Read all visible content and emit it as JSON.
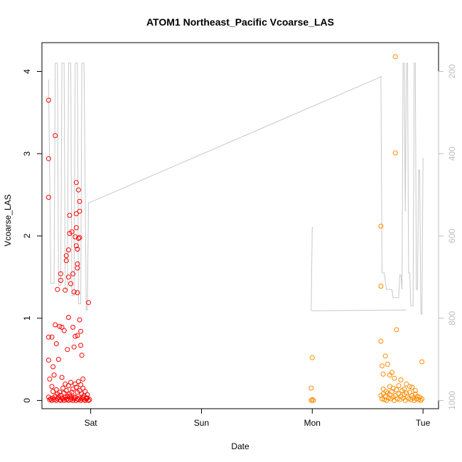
{
  "chart_data": {
    "type": "scatter",
    "title": "ATOM1 Northeast_Pacific Vcoarse_LAS",
    "xlabel": "Date",
    "ylabel": "Vcoarse_LAS",
    "x_ticks": [
      "Sat",
      "Sun",
      "Mon",
      "Tue"
    ],
    "x_tick_values": [
      1,
      2,
      3,
      4
    ],
    "xlim": [
      0.56,
      4.14
    ],
    "ylim": [
      -0.1,
      4.35
    ],
    "y_ticks": [
      "0",
      "1",
      "2",
      "3",
      "4"
    ],
    "y_tick_values": [
      0,
      1,
      2,
      3,
      4
    ],
    "right_axis": {
      "ticks": [
        "200",
        "400",
        "600",
        "800",
        "1000"
      ],
      "tick_values": [
        200,
        400,
        600,
        800,
        1000
      ],
      "reversed": true,
      "color": "#bdbdbd",
      "y_at_top": 200,
      "y_at_bottom": 1000
    },
    "colors": {
      "series_1": "#ff0000",
      "series_2": "#ff8c00",
      "line": "#c8c8c8"
    },
    "series": [
      {
        "color": "#ff0000",
        "points": [
          [
            0.62,
            3.65
          ],
          [
            0.62,
            2.94
          ],
          [
            0.62,
            2.47
          ],
          [
            0.62,
            0.77
          ],
          [
            0.62,
            0.49
          ],
          [
            0.63,
            0.26
          ],
          [
            0.65,
            0.77
          ],
          [
            0.66,
            0.41
          ],
          [
            0.67,
            0.31
          ],
          [
            0.68,
            0.92
          ],
          [
            0.68,
            3.22
          ],
          [
            0.69,
            0.69
          ],
          [
            0.7,
            1.35
          ],
          [
            0.71,
            0.5
          ],
          [
            0.72,
            0.9
          ],
          [
            0.73,
            1.54
          ],
          [
            0.73,
            1.46
          ],
          [
            0.74,
            0.89
          ],
          [
            0.74,
            0.28
          ],
          [
            0.76,
            0.85
          ],
          [
            0.77,
            1.34
          ],
          [
            0.78,
            1.76
          ],
          [
            0.78,
            1.7
          ],
          [
            0.79,
            0.62
          ],
          [
            0.8,
            1.5
          ],
          [
            0.8,
            1.01
          ],
          [
            0.8,
            1.83
          ],
          [
            0.81,
            2.25
          ],
          [
            0.81,
            2.03
          ],
          [
            0.82,
            1.42
          ],
          [
            0.83,
            2.05
          ],
          [
            0.84,
            1.54
          ],
          [
            0.84,
            0.89
          ],
          [
            0.85,
            1.32
          ],
          [
            0.85,
            0.65
          ],
          [
            0.86,
            0.78
          ],
          [
            0.86,
            1.99
          ],
          [
            0.87,
            2.1
          ],
          [
            0.87,
            2.27
          ],
          [
            0.87,
            2.65
          ],
          [
            0.87,
            1.88
          ],
          [
            0.88,
            1.84
          ],
          [
            0.88,
            1.66
          ],
          [
            0.88,
            1.61
          ],
          [
            0.88,
            1.31
          ],
          [
            0.88,
            0.79
          ],
          [
            0.89,
            1.97
          ],
          [
            0.89,
            2.56
          ],
          [
            0.9,
            2.3
          ],
          [
            0.9,
            2.42
          ],
          [
            0.9,
            1.98
          ],
          [
            0.9,
            0.98
          ],
          [
            0.91,
            0.84
          ],
          [
            0.91,
            0.67
          ],
          [
            0.92,
            0.55
          ],
          [
            0.93,
            0.26
          ],
          [
            0.98,
            1.19
          ],
          [
            0.65,
            0.17
          ],
          [
            0.66,
            0.11
          ],
          [
            0.69,
            0.13
          ],
          [
            0.7,
            0.08
          ],
          [
            0.72,
            0.1
          ],
          [
            0.73,
            0.06
          ],
          [
            0.75,
            0.15
          ],
          [
            0.76,
            0.09
          ],
          [
            0.77,
            0.2
          ],
          [
            0.78,
            0.12
          ],
          [
            0.79,
            0.05
          ],
          [
            0.8,
            0.18
          ],
          [
            0.81,
            0.08
          ],
          [
            0.82,
            0.22
          ],
          [
            0.83,
            0.1
          ],
          [
            0.84,
            0.14
          ],
          [
            0.85,
            0.04
          ],
          [
            0.86,
            0.2
          ],
          [
            0.87,
            0.16
          ],
          [
            0.88,
            0.1
          ],
          [
            0.89,
            0.23
          ],
          [
            0.9,
            0.12
          ],
          [
            0.91,
            0.19
          ],
          [
            0.92,
            0.08
          ],
          [
            0.93,
            0.15
          ],
          [
            0.94,
            0.06
          ],
          [
            0.95,
            0.11
          ],
          [
            0.96,
            0.03
          ],
          [
            0.97,
            0.07
          ],
          [
            0.62,
            0.04
          ],
          [
            0.63,
            0.01
          ],
          [
            0.64,
            0.02
          ],
          [
            0.65,
            0.0
          ],
          [
            0.66,
            0.03
          ],
          [
            0.67,
            0.01
          ],
          [
            0.68,
            0.05
          ],
          [
            0.69,
            0.0
          ],
          [
            0.7,
            0.02
          ],
          [
            0.71,
            0.04
          ],
          [
            0.72,
            0.01
          ],
          [
            0.73,
            0.0
          ],
          [
            0.74,
            0.03
          ],
          [
            0.75,
            0.02
          ],
          [
            0.76,
            0.0
          ],
          [
            0.77,
            0.04
          ],
          [
            0.78,
            0.01
          ],
          [
            0.79,
            0.02
          ],
          [
            0.8,
            0.0
          ],
          [
            0.81,
            0.05
          ],
          [
            0.82,
            0.01
          ],
          [
            0.83,
            0.03
          ],
          [
            0.84,
            0.0
          ],
          [
            0.85,
            0.02
          ],
          [
            0.86,
            0.04
          ],
          [
            0.87,
            0.0
          ],
          [
            0.88,
            0.02
          ],
          [
            0.89,
            0.01
          ],
          [
            0.9,
            0.03
          ],
          [
            0.91,
            0.0
          ],
          [
            0.92,
            0.02
          ],
          [
            0.93,
            0.04
          ],
          [
            0.94,
            0.01
          ],
          [
            0.95,
            0.0
          ],
          [
            0.96,
            0.02
          ],
          [
            0.97,
            0.03
          ],
          [
            0.98,
            0.0
          ],
          [
            0.99,
            0.01
          ]
        ]
      },
      {
        "color": "#ff8c00",
        "points": [
          [
            3.0,
            0.52
          ],
          [
            2.99,
            0.15
          ],
          [
            2.99,
            0.0
          ],
          [
            3.0,
            0.01
          ],
          [
            3.01,
            0.0
          ],
          [
            3.62,
            2.12
          ],
          [
            3.62,
            1.39
          ],
          [
            3.62,
            0.72
          ],
          [
            3.63,
            0.42
          ],
          [
            3.64,
            0.32
          ],
          [
            3.66,
            0.54
          ],
          [
            3.68,
            0.44
          ],
          [
            3.7,
            0.31
          ],
          [
            3.72,
            0.34
          ],
          [
            3.74,
            0.27
          ],
          [
            3.76,
            0.86
          ],
          [
            3.8,
            0.25
          ],
          [
            3.75,
            4.18
          ],
          [
            3.75,
            3.01
          ],
          [
            3.99,
            0.47
          ],
          [
            3.85,
            0.2
          ],
          [
            3.9,
            0.16
          ],
          [
            3.62,
            0.06
          ],
          [
            3.63,
            0.02
          ],
          [
            3.64,
            0.08
          ],
          [
            3.65,
            0.01
          ],
          [
            3.66,
            0.05
          ],
          [
            3.67,
            0.0
          ],
          [
            3.68,
            0.09
          ],
          [
            3.69,
            0.03
          ],
          [
            3.7,
            0.07
          ],
          [
            3.71,
            0.02
          ],
          [
            3.72,
            0.11
          ],
          [
            3.73,
            0.04
          ],
          [
            3.74,
            0.0
          ],
          [
            3.75,
            0.06
          ],
          [
            3.76,
            0.13
          ],
          [
            3.77,
            0.02
          ],
          [
            3.78,
            0.08
          ],
          [
            3.79,
            0.01
          ],
          [
            3.8,
            0.05
          ],
          [
            3.81,
            0.12
          ],
          [
            3.82,
            0.03
          ],
          [
            3.83,
            0.07
          ],
          [
            3.84,
            0.0
          ],
          [
            3.85,
            0.09
          ],
          [
            3.86,
            0.04
          ],
          [
            3.87,
            0.02
          ],
          [
            3.88,
            0.1
          ],
          [
            3.89,
            0.01
          ],
          [
            3.9,
            0.06
          ],
          [
            3.91,
            0.03
          ],
          [
            3.92,
            0.0
          ],
          [
            3.93,
            0.08
          ],
          [
            3.94,
            0.02
          ],
          [
            3.95,
            0.05
          ],
          [
            3.96,
            0.01
          ],
          [
            3.97,
            0.04
          ],
          [
            3.98,
            0.0
          ],
          [
            3.99,
            0.02
          ],
          [
            3.64,
            0.14
          ],
          [
            3.67,
            0.11
          ],
          [
            3.7,
            0.17
          ],
          [
            3.73,
            0.15
          ],
          [
            3.78,
            0.18
          ],
          [
            3.83,
            0.14
          ],
          [
            3.88,
            0.17
          ],
          [
            3.93,
            0.12
          ]
        ]
      }
    ],
    "line_series": {
      "color": "#c8c8c8",
      "segments": [
        [
          [
            0.62,
            220
          ],
          [
            0.64,
            715
          ],
          [
            0.67,
            715
          ],
          [
            0.68,
            180
          ],
          [
            0.7,
            180
          ],
          [
            0.71,
            720
          ],
          [
            0.73,
            720
          ],
          [
            0.74,
            180
          ],
          [
            0.76,
            180
          ],
          [
            0.77,
            730
          ],
          [
            0.79,
            730
          ],
          [
            0.8,
            180
          ],
          [
            0.82,
            180
          ],
          [
            0.83,
            745
          ],
          [
            0.85,
            745
          ],
          [
            0.86,
            180
          ],
          [
            0.88,
            180
          ],
          [
            0.89,
            765
          ],
          [
            0.91,
            765
          ],
          [
            0.92,
            180
          ],
          [
            0.94,
            180
          ],
          [
            0.96,
            780
          ],
          [
            0.97,
            780
          ],
          [
            0.98,
            520
          ],
          [
            3.63,
            212
          ]
        ],
        [
          [
            2.99,
            782
          ],
          [
            3.0,
            580
          ],
          [
            3.01,
            580
          ]
        ],
        [
          [
            2.99,
            782
          ],
          [
            3.85,
            780
          ]
        ],
        [
          [
            3.62,
            212
          ],
          [
            3.63,
            690
          ],
          [
            3.65,
            690
          ],
          [
            3.67,
            730
          ],
          [
            3.72,
            730
          ],
          [
            3.73,
            750
          ],
          [
            3.78,
            750
          ],
          [
            3.79,
            695
          ],
          [
            3.8,
            695
          ],
          [
            3.81,
            730
          ],
          [
            3.82,
            180
          ],
          [
            3.83,
            180
          ],
          [
            3.84,
            540
          ],
          [
            3.85,
            180
          ],
          [
            3.86,
            180
          ],
          [
            3.87,
            690
          ],
          [
            3.88,
            690
          ],
          [
            3.89,
            770
          ],
          [
            3.91,
            770
          ],
          [
            3.92,
            180
          ],
          [
            3.93,
            180
          ],
          [
            3.94,
            730
          ],
          [
            3.95,
            730
          ],
          [
            3.96,
            440
          ],
          [
            3.97,
            440
          ],
          [
            3.98,
            790
          ],
          [
            3.99,
            790
          ],
          [
            4.0,
            410
          ]
        ]
      ]
    }
  }
}
